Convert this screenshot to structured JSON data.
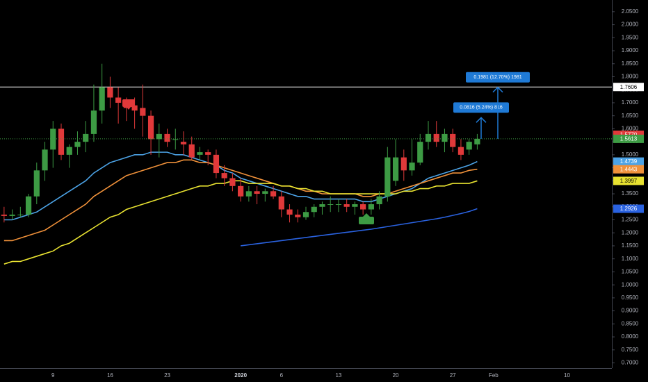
{
  "chart_data": {
    "type": "candlestick",
    "categories": [
      null,
      null,
      null,
      null,
      null,
      null,
      "9",
      null,
      null,
      null,
      null,
      null,
      null,
      "16",
      null,
      null,
      null,
      null,
      null,
      null,
      "23",
      null,
      null,
      null,
      null,
      null,
      null,
      null,
      null,
      "2020",
      null,
      null,
      null,
      null,
      "6",
      null,
      null,
      null,
      null,
      null,
      null,
      "13",
      null,
      null,
      null,
      null,
      null,
      null,
      "20",
      null,
      null,
      null,
      null,
      null,
      null,
      "27",
      null,
      null,
      null,
      null,
      "Feb",
      null,
      null,
      null,
      null,
      null,
      null,
      null,
      null,
      "10",
      null,
      null,
      null,
      null,
      null
    ],
    "open": [
      1.27,
      1.265,
      1.27,
      1.27,
      1.34,
      1.44,
      1.52,
      1.6,
      1.5,
      1.53,
      1.55,
      1.58,
      1.67,
      1.76,
      1.72,
      1.7,
      1.69,
      1.68,
      1.65,
      1.56,
      1.58,
      1.56,
      1.55,
      1.54,
      1.5,
      1.51,
      1.5,
      1.43,
      1.41,
      1.38,
      1.34,
      1.36,
      1.35,
      1.36,
      1.34,
      1.29,
      1.27,
      1.26,
      1.28,
      1.3,
      1.31,
      1.31,
      1.31,
      1.3,
      1.31,
      1.29,
      1.31,
      1.34,
      1.4,
      1.49,
      1.44,
      1.47,
      1.55,
      1.58,
      1.55,
      1.58,
      1.53,
      1.52,
      1.54,
      null,
      null,
      null,
      null,
      null,
      null,
      null,
      null,
      null,
      null,
      null,
      null,
      null,
      null,
      null,
      null
    ],
    "high": [
      1.3,
      1.29,
      1.3,
      1.35,
      1.47,
      1.55,
      1.63,
      1.62,
      1.54,
      1.59,
      1.63,
      1.77,
      1.85,
      1.8,
      1.76,
      1.72,
      1.72,
      1.77,
      1.67,
      1.62,
      1.6,
      1.6,
      1.59,
      1.57,
      1.53,
      1.52,
      1.52,
      1.46,
      1.43,
      1.41,
      1.38,
      1.38,
      1.37,
      1.38,
      1.36,
      1.31,
      1.29,
      1.3,
      1.31,
      1.32,
      1.34,
      1.33,
      1.33,
      1.32,
      1.32,
      1.33,
      1.36,
      1.53,
      1.56,
      1.52,
      1.56,
      1.58,
      1.63,
      1.63,
      1.6,
      1.6,
      1.56,
      1.56,
      1.58,
      null,
      null,
      null,
      null,
      null,
      null,
      null,
      null,
      null,
      null,
      null,
      null,
      null,
      null,
      null,
      null
    ],
    "low": [
      1.24,
      1.25,
      1.26,
      1.26,
      1.31,
      1.4,
      1.45,
      1.48,
      1.45,
      1.5,
      1.51,
      1.55,
      1.62,
      1.68,
      1.62,
      1.63,
      1.6,
      1.57,
      1.5,
      1.49,
      1.53,
      1.52,
      1.5,
      1.48,
      1.48,
      1.46,
      1.41,
      1.38,
      1.36,
      1.32,
      1.32,
      1.31,
      1.32,
      1.33,
      1.26,
      1.24,
      1.24,
      1.25,
      1.26,
      1.27,
      1.28,
      1.28,
      1.28,
      1.27,
      1.27,
      1.27,
      1.29,
      1.32,
      1.38,
      1.4,
      1.42,
      1.46,
      1.52,
      1.53,
      1.51,
      1.51,
      1.48,
      1.5,
      1.52,
      null,
      null,
      null,
      null,
      null,
      null,
      null,
      null,
      null,
      null,
      null,
      null,
      null,
      null,
      null,
      null
    ],
    "close": [
      1.265,
      1.27,
      1.27,
      1.34,
      1.44,
      1.52,
      1.6,
      1.5,
      1.53,
      1.55,
      1.58,
      1.67,
      1.76,
      1.72,
      1.7,
      1.68,
      1.67,
      1.65,
      1.56,
      1.58,
      1.55,
      1.56,
      1.54,
      1.49,
      1.51,
      1.5,
      1.43,
      1.41,
      1.38,
      1.34,
      1.36,
      1.35,
      1.36,
      1.34,
      1.29,
      1.27,
      1.26,
      1.28,
      1.3,
      1.31,
      1.31,
      1.31,
      1.3,
      1.31,
      1.29,
      1.31,
      1.34,
      1.49,
      1.49,
      1.44,
      1.47,
      1.55,
      1.58,
      1.55,
      1.58,
      1.53,
      1.5,
      1.55,
      1.5613,
      null,
      null,
      null,
      null,
      null,
      null,
      null,
      null,
      null,
      null,
      null,
      null,
      null,
      null,
      null,
      null
    ],
    "up_color": "#3d9b44",
    "down_color": "#e0393a",
    "lines": [
      {
        "color": "#4ca3e6",
        "values": [
          1.25,
          1.25,
          1.26,
          1.27,
          1.28,
          1.3,
          1.32,
          1.34,
          1.36,
          1.38,
          1.4,
          1.43,
          1.45,
          1.47,
          1.48,
          1.49,
          1.5,
          1.5,
          1.51,
          1.51,
          1.51,
          1.5,
          1.5,
          1.49,
          1.48,
          1.47,
          1.46,
          1.44,
          1.43,
          1.41,
          1.4,
          1.39,
          1.38,
          1.37,
          1.36,
          1.35,
          1.34,
          1.34,
          1.33,
          1.33,
          1.33,
          1.33,
          1.33,
          1.33,
          1.32,
          1.32,
          1.33,
          1.34,
          1.35,
          1.36,
          1.37,
          1.39,
          1.41,
          1.42,
          1.43,
          1.44,
          1.45,
          1.46,
          1.4739,
          null,
          null,
          null,
          null,
          null,
          null,
          null,
          null,
          null,
          null,
          null,
          null,
          null,
          null,
          null,
          null
        ]
      },
      {
        "color": "#f0913a",
        "values": [
          1.17,
          1.17,
          1.18,
          1.19,
          1.2,
          1.21,
          1.23,
          1.25,
          1.27,
          1.29,
          1.31,
          1.34,
          1.36,
          1.38,
          1.4,
          1.42,
          1.43,
          1.44,
          1.45,
          1.46,
          1.47,
          1.47,
          1.48,
          1.48,
          1.47,
          1.47,
          1.46,
          1.45,
          1.44,
          1.43,
          1.42,
          1.41,
          1.4,
          1.39,
          1.38,
          1.38,
          1.37,
          1.36,
          1.36,
          1.35,
          1.35,
          1.35,
          1.35,
          1.35,
          1.34,
          1.34,
          1.35,
          1.35,
          1.36,
          1.37,
          1.38,
          1.39,
          1.4,
          1.41,
          1.42,
          1.43,
          1.43,
          1.44,
          1.4443,
          null,
          null,
          null,
          null,
          null,
          null,
          null,
          null,
          null,
          null,
          null,
          null,
          null,
          null,
          null,
          null
        ]
      },
      {
        "color": "#e8e231",
        "values": [
          1.08,
          1.09,
          1.09,
          1.1,
          1.11,
          1.12,
          1.13,
          1.15,
          1.16,
          1.18,
          1.2,
          1.22,
          1.24,
          1.26,
          1.27,
          1.29,
          1.3,
          1.31,
          1.32,
          1.33,
          1.34,
          1.35,
          1.36,
          1.37,
          1.38,
          1.38,
          1.39,
          1.39,
          1.4,
          1.4,
          1.39,
          1.39,
          1.39,
          1.39,
          1.38,
          1.38,
          1.37,
          1.37,
          1.36,
          1.36,
          1.35,
          1.35,
          1.35,
          1.35,
          1.35,
          1.35,
          1.35,
          1.35,
          1.35,
          1.36,
          1.36,
          1.37,
          1.37,
          1.38,
          1.38,
          1.39,
          1.39,
          1.39,
          1.3997,
          null,
          null,
          null,
          null,
          null,
          null,
          null,
          null,
          null,
          null,
          null,
          null,
          null,
          null,
          null,
          null
        ]
      },
      {
        "color": "#2a62e0",
        "values": [
          null,
          null,
          null,
          null,
          null,
          null,
          null,
          null,
          null,
          null,
          null,
          null,
          null,
          null,
          null,
          null,
          null,
          null,
          null,
          null,
          null,
          null,
          null,
          null,
          null,
          null,
          null,
          null,
          null,
          1.15,
          1.154,
          1.158,
          1.162,
          1.166,
          1.17,
          1.174,
          1.178,
          1.182,
          1.186,
          1.19,
          1.194,
          1.198,
          1.202,
          1.206,
          1.21,
          1.214,
          1.219,
          1.224,
          1.229,
          1.234,
          1.239,
          1.244,
          1.249,
          1.254,
          1.26,
          1.267,
          1.274,
          1.282,
          1.2926,
          null,
          null,
          null,
          null,
          null,
          null,
          null,
          null,
          null,
          null,
          null,
          null,
          null,
          null,
          null,
          null
        ]
      }
    ],
    "hline": {
      "value": 1.7606,
      "label": "1.7606",
      "color": "#ffffff"
    },
    "price_labels": [
      {
        "value": 1.577,
        "label": "1.5770",
        "color": "#e0393a"
      },
      {
        "value": 1.5613,
        "label": "1.5613",
        "color": "#3d9b44"
      },
      {
        "value": 1.4739,
        "label": "1.4739",
        "color": "#4ca3e6"
      },
      {
        "value": 1.4443,
        "label": "1.4443",
        "color": "#f0913a"
      },
      {
        "value": 1.3997,
        "label": "1.3997",
        "color": "#e8e231"
      },
      {
        "value": 1.2926,
        "label": "1.2926",
        "color": "#2a62e0"
      }
    ],
    "annotations": [
      {
        "text": "0.0816 (5.24%) 816",
        "from": 1.5613,
        "to": 1.6429,
        "color": "#1f7ad6"
      },
      {
        "text": "0.1981 (12.70%) 1981",
        "from": 1.5613,
        "to": 1.7594,
        "color": "#1f7ad6"
      }
    ],
    "ylim": [
      0.68,
      2.095
    ],
    "yticks": [
      {
        "value": 0.7,
        "label": "0.7000"
      },
      {
        "value": 0.75,
        "label": "0.7500"
      },
      {
        "value": 0.8,
        "label": "0.8000"
      },
      {
        "value": 0.85,
        "label": "0.8500"
      },
      {
        "value": 0.9,
        "label": "0.9000"
      },
      {
        "value": 0.95,
        "label": "0.9500"
      },
      {
        "value": 1.0,
        "label": "1.0000"
      },
      {
        "value": 1.05,
        "label": "1.0500"
      },
      {
        "value": 1.1,
        "label": "1.1000"
      },
      {
        "value": 1.15,
        "label": "1.1500"
      },
      {
        "value": 1.2,
        "label": "1.2000"
      },
      {
        "value": 1.25,
        "label": "1.2500"
      },
      {
        "value": 1.3,
        "label": "1.3000"
      },
      {
        "value": 1.35,
        "label": "1.3500"
      },
      {
        "value": 1.4,
        "label": "1.4000"
      },
      {
        "value": 1.45,
        "label": "1.4500"
      },
      {
        "value": 1.5,
        "label": "1.5000"
      },
      {
        "value": 1.55,
        "label": "1.5500"
      },
      {
        "value": 1.6,
        "label": "1.6000"
      },
      {
        "value": 1.65,
        "label": "1.6500"
      },
      {
        "value": 1.7,
        "label": "1.7000"
      },
      {
        "value": 1.75,
        "label": "1.7500"
      },
      {
        "value": 1.8,
        "label": "1.8000"
      },
      {
        "value": 1.85,
        "label": "1.8500"
      },
      {
        "value": 1.9,
        "label": "1.9000"
      },
      {
        "value": 1.95,
        "label": "1.9500"
      },
      {
        "value": 2.0,
        "label": "2.0000"
      },
      {
        "value": 2.05,
        "label": "2.0500"
      }
    ]
  }
}
